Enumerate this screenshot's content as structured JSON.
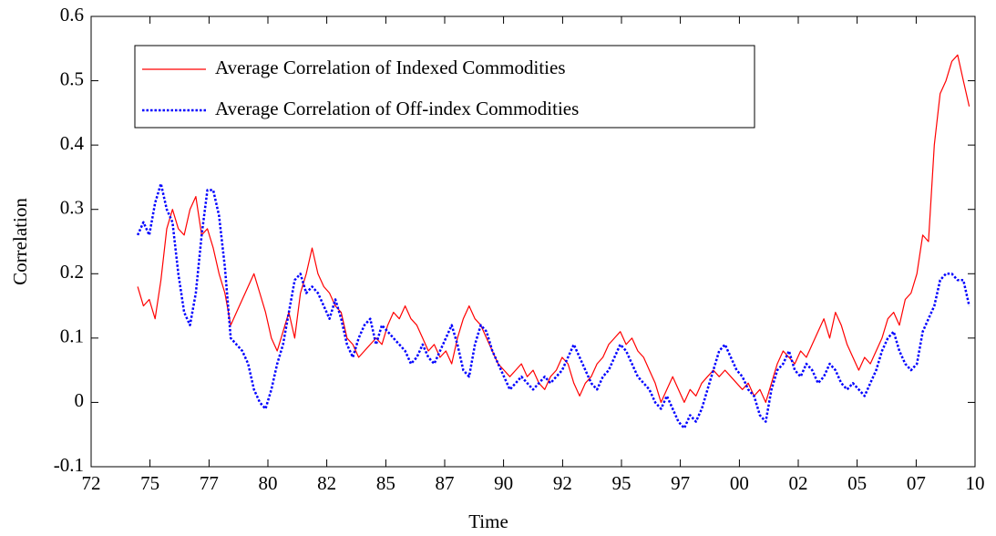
{
  "chart_data": {
    "type": "line",
    "x_label": "Time",
    "y_label": "Correlation",
    "xlim": [
      1972,
      2010
    ],
    "ylim": [
      -0.1,
      0.6
    ],
    "xticks": [
      {
        "value": 1972,
        "label": "72"
      },
      {
        "value": 1974.53,
        "label": "75"
      },
      {
        "value": 1977.07,
        "label": "77"
      },
      {
        "value": 1979.6,
        "label": "80"
      },
      {
        "value": 1982.13,
        "label": "82"
      },
      {
        "value": 1984.67,
        "label": "85"
      },
      {
        "value": 1987.2,
        "label": "87"
      },
      {
        "value": 1989.73,
        "label": "90"
      },
      {
        "value": 1992.27,
        "label": "92"
      },
      {
        "value": 1994.8,
        "label": "95"
      },
      {
        "value": 1997.33,
        "label": "97"
      },
      {
        "value": 1999.87,
        "label": "00"
      },
      {
        "value": 2002.4,
        "label": "02"
      },
      {
        "value": 2004.93,
        "label": "05"
      },
      {
        "value": 2007.47,
        "label": "07"
      },
      {
        "value": 2010,
        "label": "10"
      }
    ],
    "yticks": [
      -0.1,
      0,
      0.1,
      0.2,
      0.3,
      0.4,
      0.5,
      0.6
    ],
    "legend": "upper left",
    "x": [
      1974,
      1974.25,
      1974.5,
      1974.75,
      1975,
      1975.25,
      1975.5,
      1975.75,
      1976,
      1976.25,
      1976.5,
      1976.75,
      1977,
      1977.25,
      1977.5,
      1977.75,
      1978,
      1978.25,
      1978.5,
      1978.75,
      1979,
      1979.25,
      1979.5,
      1979.75,
      1980,
      1980.25,
      1980.5,
      1980.75,
      1981,
      1981.25,
      1981.5,
      1981.75,
      1982,
      1982.25,
      1982.5,
      1982.75,
      1983,
      1983.25,
      1983.5,
      1983.75,
      1984,
      1984.25,
      1984.5,
      1984.75,
      1985,
      1985.25,
      1985.5,
      1985.75,
      1986,
      1986.25,
      1986.5,
      1986.75,
      1987,
      1987.25,
      1987.5,
      1987.75,
      1988,
      1988.25,
      1988.5,
      1988.75,
      1989,
      1989.25,
      1989.5,
      1989.75,
      1990,
      1990.25,
      1990.5,
      1990.75,
      1991,
      1991.25,
      1991.5,
      1991.75,
      1992,
      1992.25,
      1992.5,
      1992.75,
      1993,
      1993.25,
      1993.5,
      1993.75,
      1994,
      1994.25,
      1994.5,
      1994.75,
      1995,
      1995.25,
      1995.5,
      1995.75,
      1996,
      1996.25,
      1996.5,
      1996.75,
      1997,
      1997.25,
      1997.5,
      1997.75,
      1998,
      1998.25,
      1998.5,
      1998.75,
      1999,
      1999.25,
      1999.5,
      1999.75,
      2000,
      2000.25,
      2000.5,
      2000.75,
      2001,
      2001.25,
      2001.5,
      2001.75,
      2002,
      2002.25,
      2002.5,
      2002.75,
      2003,
      2003.25,
      2003.5,
      2003.75,
      2004,
      2004.25,
      2004.5,
      2004.75,
      2005,
      2005.25,
      2005.5,
      2005.75,
      2006,
      2006.25,
      2006.5,
      2006.75,
      2007,
      2007.25,
      2007.5,
      2007.75,
      2008,
      2008.25,
      2008.5,
      2008.75,
      2009,
      2009.25,
      2009.5,
      2009.75
    ],
    "series": [
      {
        "name": "Average Correlation of Indexed Commodities",
        "color": "#ff0000",
        "style": "solid",
        "values": [
          0.18,
          0.15,
          0.16,
          0.13,
          0.19,
          0.27,
          0.3,
          0.27,
          0.26,
          0.3,
          0.32,
          0.26,
          0.27,
          0.24,
          0.2,
          0.17,
          0.12,
          0.14,
          0.16,
          0.18,
          0.2,
          0.17,
          0.14,
          0.1,
          0.08,
          0.11,
          0.14,
          0.1,
          0.17,
          0.2,
          0.24,
          0.2,
          0.18,
          0.17,
          0.15,
          0.14,
          0.1,
          0.09,
          0.07,
          0.08,
          0.09,
          0.1,
          0.09,
          0.12,
          0.14,
          0.13,
          0.15,
          0.13,
          0.12,
          0.1,
          0.08,
          0.09,
          0.07,
          0.08,
          0.06,
          0.1,
          0.13,
          0.15,
          0.13,
          0.12,
          0.1,
          0.08,
          0.06,
          0.05,
          0.04,
          0.05,
          0.06,
          0.04,
          0.05,
          0.03,
          0.02,
          0.04,
          0.05,
          0.07,
          0.06,
          0.03,
          0.01,
          0.03,
          0.04,
          0.06,
          0.07,
          0.09,
          0.1,
          0.11,
          0.09,
          0.1,
          0.08,
          0.07,
          0.05,
          0.03,
          0.0,
          0.02,
          0.04,
          0.02,
          0.0,
          0.02,
          0.01,
          0.03,
          0.04,
          0.05,
          0.04,
          0.05,
          0.04,
          0.03,
          0.02,
          0.03,
          0.01,
          0.02,
          0.0,
          0.03,
          0.06,
          0.08,
          0.07,
          0.06,
          0.08,
          0.07,
          0.09,
          0.11,
          0.13,
          0.1,
          0.14,
          0.12,
          0.09,
          0.07,
          0.05,
          0.07,
          0.06,
          0.08,
          0.1,
          0.13,
          0.14,
          0.12,
          0.16,
          0.17,
          0.2,
          0.26,
          0.25,
          0.4,
          0.48,
          0.5,
          0.53,
          0.54,
          0.5,
          0.46
        ]
      },
      {
        "name": "Average Correlation of Off-index Commodities",
        "color": "#0000ff",
        "style": "dotted",
        "values": [
          0.26,
          0.28,
          0.26,
          0.31,
          0.34,
          0.3,
          0.28,
          0.2,
          0.14,
          0.12,
          0.17,
          0.26,
          0.33,
          0.33,
          0.29,
          0.21,
          0.1,
          0.09,
          0.08,
          0.06,
          0.02,
          0.0,
          -0.01,
          0.02,
          0.06,
          0.09,
          0.14,
          0.19,
          0.2,
          0.17,
          0.18,
          0.17,
          0.15,
          0.13,
          0.16,
          0.13,
          0.09,
          0.07,
          0.1,
          0.12,
          0.13,
          0.09,
          0.12,
          0.11,
          0.1,
          0.09,
          0.08,
          0.06,
          0.07,
          0.09,
          0.07,
          0.06,
          0.08,
          0.1,
          0.12,
          0.09,
          0.05,
          0.04,
          0.09,
          0.12,
          0.11,
          0.08,
          0.06,
          0.04,
          0.02,
          0.03,
          0.04,
          0.03,
          0.02,
          0.03,
          0.04,
          0.03,
          0.04,
          0.05,
          0.07,
          0.09,
          0.07,
          0.05,
          0.03,
          0.02,
          0.04,
          0.05,
          0.07,
          0.09,
          0.08,
          0.06,
          0.04,
          0.03,
          0.02,
          0.0,
          -0.01,
          0.01,
          -0.01,
          -0.03,
          -0.04,
          -0.02,
          -0.03,
          -0.01,
          0.02,
          0.05,
          0.08,
          0.09,
          0.07,
          0.05,
          0.04,
          0.02,
          0.01,
          -0.02,
          -0.03,
          0.02,
          0.05,
          0.06,
          0.08,
          0.05,
          0.04,
          0.06,
          0.05,
          0.03,
          0.04,
          0.06,
          0.05,
          0.03,
          0.02,
          0.03,
          0.02,
          0.01,
          0.03,
          0.05,
          0.08,
          0.1,
          0.11,
          0.08,
          0.06,
          0.05,
          0.06,
          0.11,
          0.13,
          0.15,
          0.19,
          0.2,
          0.2,
          0.19,
          0.19,
          0.15
        ]
      }
    ]
  }
}
